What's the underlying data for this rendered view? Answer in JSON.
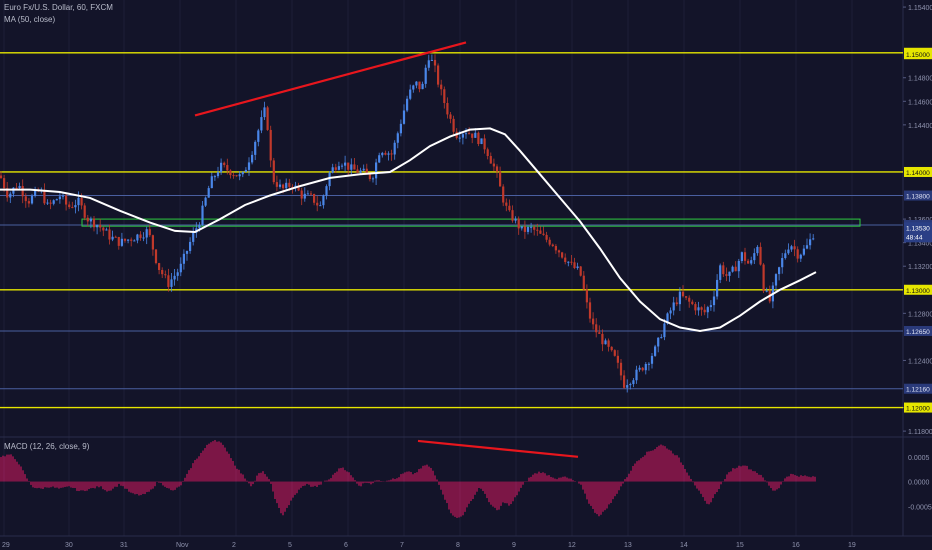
{
  "header": {
    "symbol_title": "Euro Fx/U.S. Dollar, 60, FXCM",
    "ma_label": "MA (50, close)",
    "macd_label": "MACD (12, 26, close, 9)"
  },
  "colors": {
    "background": "#131429",
    "candle_up": "#4a86e8",
    "candle_down": "#c0392b",
    "ma_line": "#ffffff",
    "level_yellow": "#e6e600",
    "level_blue": "#4a5fa0",
    "zone_green": "#2ecc40",
    "trendline": "#e8161d",
    "macd_hist": "#c2185b"
  },
  "chart_data": [
    {
      "type": "candlestick",
      "name": "price",
      "ylim": [
        1.1175,
        1.1546
      ],
      "y_ticks": [
        "1.15400",
        "1.14800",
        "1.14600",
        "1.14400",
        "1.13600",
        "1.13400",
        "1.13200",
        "1.12800",
        "1.12400",
        "1.12000",
        "1.11800"
      ],
      "x_ticks": [
        "29",
        "30",
        "31",
        "Nov",
        "2",
        "5",
        "6",
        "7",
        "8",
        "9",
        "12",
        "13",
        "14",
        "15",
        "16",
        "19"
      ],
      "x_tick_index": [
        4,
        69,
        124,
        180,
        236,
        292,
        348,
        404,
        460,
        516,
        572,
        628,
        684,
        740,
        796,
        852
      ],
      "labeled_levels": [
        {
          "label": "1.15012",
          "value": 1.15012,
          "kind": "yellow",
          "range": [
            0,
            932
          ]
        },
        {
          "label": "1.15000",
          "value": 1.15,
          "kind": "yellow",
          "range": [
            0,
            0
          ]
        },
        {
          "label": "1.14000",
          "value": 1.14,
          "kind": "yellow",
          "range": [
            0,
            932
          ]
        },
        {
          "label": "1.13800",
          "value": 1.138,
          "kind": "blue",
          "range": [
            0,
            932
          ]
        },
        {
          "label": "1.13550",
          "value": 1.1355,
          "kind": "blue",
          "range": [
            0,
            932
          ]
        },
        {
          "label": "1.13510",
          "value": 1.1351,
          "kind": "blue",
          "range": [
            0,
            0
          ]
        },
        {
          "label": "1.13000",
          "value": 1.13,
          "kind": "yellow",
          "range": [
            0,
            932
          ]
        },
        {
          "label": "1.12650",
          "value": 1.1265,
          "kind": "blue",
          "range": [
            0,
            932
          ]
        },
        {
          "label": "1.12160",
          "value": 1.1216,
          "kind": "blue",
          "range": [
            0,
            932
          ]
        },
        {
          "label": "1.12000",
          "value": 1.12,
          "kind": "yellow",
          "range": [
            0,
            932
          ]
        }
      ],
      "last_price": {
        "value": 1.1353,
        "label": "1.13530"
      },
      "countdown": "48:44",
      "resistance_zone": [
        1.1354,
        1.136
      ],
      "trendline": {
        "from": [
          195,
          1.1448
        ],
        "to": [
          466,
          1.151
        ]
      },
      "price_path": [
        [
          0,
          1.1397
        ],
        [
          8,
          1.138
        ],
        [
          18,
          1.139
        ],
        [
          28,
          1.1375
        ],
        [
          40,
          1.1385
        ],
        [
          48,
          1.137
        ],
        [
          60,
          1.138
        ],
        [
          68,
          1.137
        ],
        [
          78,
          1.1375
        ],
        [
          88,
          1.136
        ],
        [
          98,
          1.1355
        ],
        [
          110,
          1.1345
        ],
        [
          120,
          1.134
        ],
        [
          135,
          1.1345
        ],
        [
          148,
          1.135
        ],
        [
          158,
          1.132
        ],
        [
          168,
          1.1305
        ],
        [
          180,
          1.1318
        ],
        [
          190,
          1.134
        ],
        [
          200,
          1.136
        ],
        [
          210,
          1.139
        ],
        [
          220,
          1.1405
        ],
        [
          232,
          1.14
        ],
        [
          242,
          1.1395
        ],
        [
          252,
          1.1418
        ],
        [
          260,
          1.144
        ],
        [
          266,
          1.1455
        ],
        [
          272,
          1.1395
        ],
        [
          282,
          1.1385
        ],
        [
          292,
          1.139
        ],
        [
          302,
          1.138
        ],
        [
          312,
          1.1378
        ],
        [
          320,
          1.137
        ],
        [
          330,
          1.14
        ],
        [
          340,
          1.141
        ],
        [
          352,
          1.1402
        ],
        [
          362,
          1.14
        ],
        [
          372,
          1.1395
        ],
        [
          380,
          1.142
        ],
        [
          392,
          1.1415
        ],
        [
          400,
          1.144
        ],
        [
          408,
          1.1465
        ],
        [
          416,
          1.1475
        ],
        [
          422,
          1.147
        ],
        [
          428,
          1.15
        ],
        [
          434,
          1.149
        ],
        [
          440,
          1.147
        ],
        [
          448,
          1.145
        ],
        [
          456,
          1.1432
        ],
        [
          466,
          1.1435
        ],
        [
          476,
          1.143
        ],
        [
          486,
          1.142
        ],
        [
          496,
          1.14
        ],
        [
          502,
          1.138
        ],
        [
          508,
          1.1365
        ],
        [
          514,
          1.136
        ],
        [
          522,
          1.135
        ],
        [
          532,
          1.1352
        ],
        [
          542,
          1.1345
        ],
        [
          552,
          1.134
        ],
        [
          562,
          1.133
        ],
        [
          572,
          1.132
        ],
        [
          580,
          1.1315
        ],
        [
          586,
          1.129
        ],
        [
          592,
          1.127
        ],
        [
          600,
          1.126
        ],
        [
          608,
          1.125
        ],
        [
          616,
          1.124
        ],
        [
          624,
          1.122
        ],
        [
          632,
          1.1225
        ],
        [
          640,
          1.1232
        ],
        [
          648,
          1.124
        ],
        [
          656,
          1.125
        ],
        [
          664,
          1.127
        ],
        [
          672,
          1.1285
        ],
        [
          680,
          1.1295
        ],
        [
          688,
          1.129
        ],
        [
          696,
          1.1285
        ],
        [
          704,
          1.128
        ],
        [
          712,
          1.129
        ],
        [
          720,
          1.132
        ],
        [
          728,
          1.131
        ],
        [
          736,
          1.132
        ],
        [
          742,
          1.133
        ],
        [
          750,
          1.132
        ],
        [
          758,
          1.134
        ],
        [
          764,
          1.13
        ],
        [
          770,
          1.129
        ],
        [
          776,
          1.131
        ],
        [
          784,
          1.133
        ],
        [
          790,
          1.134
        ],
        [
          798,
          1.133
        ],
        [
          806,
          1.1335
        ],
        [
          812,
          1.1345
        ],
        [
          816,
          1.1353
        ]
      ],
      "ma_path": [
        [
          0,
          1.1385
        ],
        [
          30,
          1.1385
        ],
        [
          60,
          1.1383
        ],
        [
          90,
          1.1378
        ],
        [
          120,
          1.1367
        ],
        [
          150,
          1.1357
        ],
        [
          175,
          1.135
        ],
        [
          195,
          1.1349
        ],
        [
          220,
          1.136
        ],
        [
          245,
          1.1372
        ],
        [
          270,
          1.138
        ],
        [
          300,
          1.1388
        ],
        [
          330,
          1.1395
        ],
        [
          360,
          1.1398
        ],
        [
          390,
          1.14
        ],
        [
          410,
          1.141
        ],
        [
          430,
          1.1422
        ],
        [
          450,
          1.143
        ],
        [
          470,
          1.1436
        ],
        [
          490,
          1.1437
        ],
        [
          505,
          1.1432
        ],
        [
          520,
          1.1418
        ],
        [
          540,
          1.1398
        ],
        [
          560,
          1.1378
        ],
        [
          580,
          1.1358
        ],
        [
          600,
          1.1335
        ],
        [
          620,
          1.131
        ],
        [
          640,
          1.129
        ],
        [
          660,
          1.1275
        ],
        [
          680,
          1.1268
        ],
        [
          700,
          1.1265
        ],
        [
          720,
          1.1268
        ],
        [
          740,
          1.1278
        ],
        [
          760,
          1.129
        ],
        [
          780,
          1.13
        ],
        [
          800,
          1.1308
        ],
        [
          816,
          1.1315
        ]
      ]
    },
    {
      "type": "bar",
      "name": "MACD",
      "ylim": [
        -0.0011,
        0.0009
      ],
      "y_ticks": [
        "0.0005",
        "0.0000",
        "-0.0005"
      ],
      "hist_path": [
        [
          0,
          0.0005
        ],
        [
          10,
          0.00055
        ],
        [
          18,
          0.0004
        ],
        [
          26,
          0.0001
        ],
        [
          32,
          -0.0001
        ],
        [
          40,
          -0.00015
        ],
        [
          50,
          -0.0001
        ],
        [
          60,
          -0.00015
        ],
        [
          70,
          -0.0001
        ],
        [
          80,
          -0.0002
        ],
        [
          90,
          -0.00015
        ],
        [
          100,
          -0.0001
        ],
        [
          108,
          -0.0002
        ],
        [
          120,
          -5e-05
        ],
        [
          132,
          -0.00025
        ],
        [
          142,
          -0.00028
        ],
        [
          150,
          -0.0002
        ],
        [
          158,
          0.0
        ],
        [
          166,
          -0.0001
        ],
        [
          172,
          -0.0002
        ],
        [
          180,
          -0.0001
        ],
        [
          186,
          0.0001
        ],
        [
          194,
          0.0004
        ],
        [
          202,
          0.0006
        ],
        [
          208,
          0.00075
        ],
        [
          214,
          0.00085
        ],
        [
          220,
          0.0008
        ],
        [
          228,
          0.0006
        ],
        [
          236,
          0.0003
        ],
        [
          244,
          0.0001
        ],
        [
          252,
          -0.0001
        ],
        [
          258,
          0.00015
        ],
        [
          264,
          0.0002
        ],
        [
          270,
          0.0
        ],
        [
          276,
          -0.0004
        ],
        [
          282,
          -0.0007
        ],
        [
          288,
          -0.0005
        ],
        [
          294,
          -0.0003
        ],
        [
          300,
          -0.00015
        ],
        [
          306,
          -5e-05
        ],
        [
          312,
          -0.0001
        ],
        [
          318,
          -0.0001
        ],
        [
          324,
          0.0
        ],
        [
          330,
          5e-05
        ],
        [
          336,
          0.0002
        ],
        [
          342,
          0.0003
        ],
        [
          348,
          0.0002
        ],
        [
          354,
          5e-05
        ],
        [
          360,
          -0.0001
        ],
        [
          366,
          0.0
        ],
        [
          372,
          -5e-05
        ],
        [
          378,
          5e-05
        ],
        [
          384,
          0.0
        ],
        [
          390,
          5e-05
        ],
        [
          396,
          5e-05
        ],
        [
          402,
          0.00015
        ],
        [
          408,
          0.0002
        ],
        [
          414,
          0.00015
        ],
        [
          420,
          0.00025
        ],
        [
          426,
          0.00035
        ],
        [
          432,
          0.00025
        ],
        [
          438,
          0.0
        ],
        [
          444,
          -0.0003
        ],
        [
          450,
          -0.0006
        ],
        [
          456,
          -0.00075
        ],
        [
          462,
          -0.0007
        ],
        [
          468,
          -0.0005
        ],
        [
          474,
          -0.0003
        ],
        [
          480,
          -0.0001
        ],
        [
          486,
          -0.0003
        ],
        [
          492,
          -0.0005
        ],
        [
          498,
          -0.0006
        ],
        [
          504,
          -0.0004
        ],
        [
          510,
          -0.0005
        ],
        [
          516,
          -0.0003
        ],
        [
          522,
          -0.0001
        ],
        [
          528,
          5e-05
        ],
        [
          534,
          0.00015
        ],
        [
          540,
          0.0002
        ],
        [
          546,
          0.00015
        ],
        [
          552,
          0.0001
        ],
        [
          558,
          5e-05
        ],
        [
          564,
          0.0001
        ],
        [
          570,
          5e-05
        ],
        [
          576,
          0.0
        ],
        [
          582,
          -0.0001
        ],
        [
          588,
          -0.0004
        ],
        [
          594,
          -0.0006
        ],
        [
          600,
          -0.0007
        ],
        [
          606,
          -0.00055
        ],
        [
          612,
          -0.0004
        ],
        [
          618,
          -0.0002
        ],
        [
          624,
          0.0
        ],
        [
          630,
          0.0002
        ],
        [
          636,
          0.0004
        ],
        [
          642,
          0.0005
        ],
        [
          648,
          0.0006
        ],
        [
          654,
          0.00065
        ],
        [
          660,
          0.00075
        ],
        [
          666,
          0.0007
        ],
        [
          672,
          0.0006
        ],
        [
          678,
          0.0005
        ],
        [
          684,
          0.0003
        ],
        [
          690,
          0.0001
        ],
        [
          696,
          -0.0001
        ],
        [
          702,
          -0.0003
        ],
        [
          708,
          -0.0005
        ],
        [
          714,
          -0.0003
        ],
        [
          720,
          -0.0001
        ],
        [
          726,
          0.0001
        ],
        [
          732,
          0.00025
        ],
        [
          738,
          0.0003
        ],
        [
          744,
          0.00035
        ],
        [
          750,
          0.00025
        ],
        [
          756,
          0.0002
        ],
        [
          762,
          0.0001
        ],
        [
          768,
          -5e-05
        ],
        [
          774,
          -0.0002
        ],
        [
          780,
          -0.0001
        ],
        [
          786,
          0.0001
        ],
        [
          792,
          0.00015
        ],
        [
          798,
          0.0001
        ],
        [
          804,
          0.00012
        ],
        [
          810,
          0.0001
        ],
        [
          816,
          0.00012
        ]
      ],
      "trendline": {
        "from": [
          418,
          0.00082
        ],
        "to": [
          578,
          0.0005
        ]
      }
    }
  ]
}
